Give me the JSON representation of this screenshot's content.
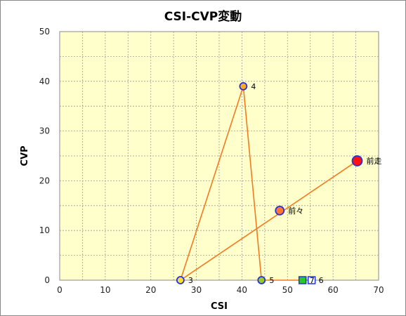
{
  "chart_data": {
    "type": "scatter",
    "title": "CSI-CVP変動",
    "xlabel": "CSI",
    "ylabel": "CVP",
    "xlim": [
      0,
      70
    ],
    "ylim": [
      0,
      50
    ],
    "xticks": [
      0,
      10,
      20,
      30,
      40,
      50,
      60,
      70
    ],
    "yticks": [
      0,
      10,
      20,
      30,
      40,
      50
    ],
    "grid": true,
    "colors": {
      "plot_bg": "#ffffcc",
      "line": "#f47a20",
      "grid": "#9a9a9a"
    },
    "points": [
      {
        "label": "前走",
        "x": 65.3,
        "y": 24,
        "color": "#ff1111",
        "shape": "circle-large",
        "stroke": "#2233dd"
      },
      {
        "label": "前々",
        "x": 48.3,
        "y": 14,
        "color": "#ff7733",
        "shape": "circle",
        "stroke": "#2233dd"
      },
      {
        "label": "3",
        "x": 26.5,
        "y": 0,
        "color": "#ffdd33",
        "shape": "circle-small",
        "stroke": "#2233dd"
      },
      {
        "label": "4",
        "x": 40.3,
        "y": 39,
        "color": "#ffaa22",
        "shape": "circle-small",
        "stroke": "#2233dd"
      },
      {
        "label": "5",
        "x": 44.3,
        "y": 0,
        "color": "#99cc22",
        "shape": "circle-small",
        "stroke": "#2233dd"
      },
      {
        "label": "6",
        "x": 55.3,
        "y": 0,
        "color": "#ffffff",
        "shape": "square",
        "stroke": "#2233dd"
      },
      {
        "label": "7",
        "x": 53.3,
        "y": 0,
        "color": "#22cc22",
        "shape": "square",
        "stroke": "#2233dd"
      }
    ],
    "path_order": [
      "前走",
      "3",
      "4",
      "5",
      "7",
      "6"
    ]
  }
}
